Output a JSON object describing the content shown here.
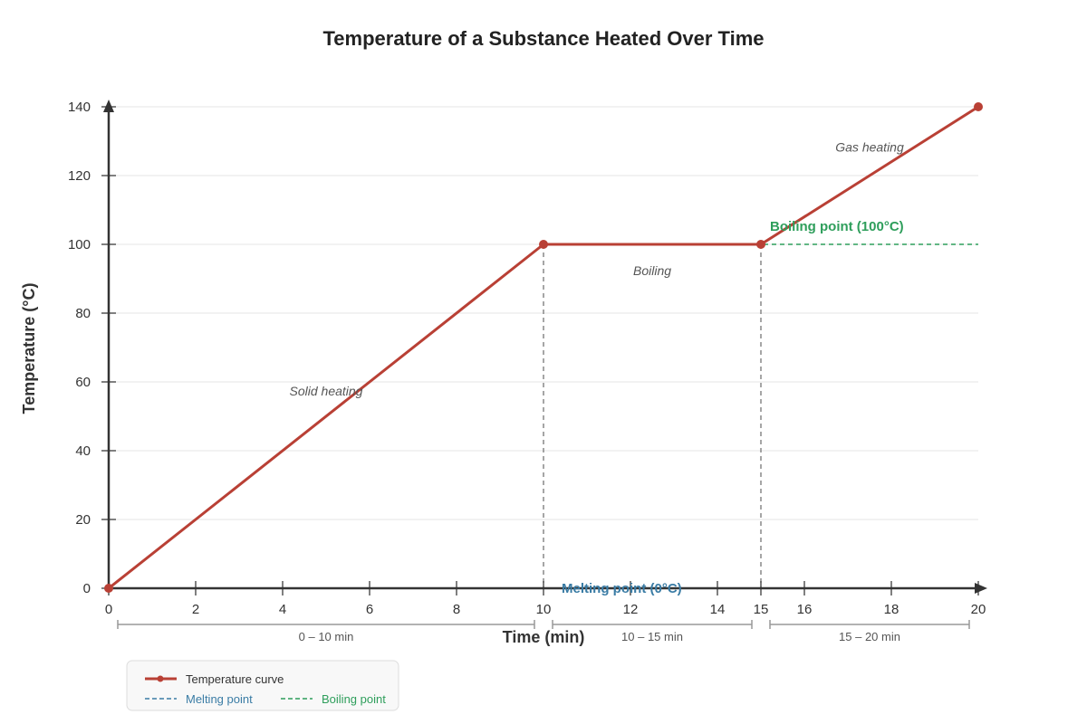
{
  "chart_data": {
    "type": "line",
    "title": "Temperature of a Substance Heated Over Time",
    "xlabel": "Time (min)",
    "ylabel": "Temperature (°C)",
    "xlim": [
      0,
      20
    ],
    "ylim": [
      0,
      140
    ],
    "x_ticks": [
      0,
      2,
      4,
      6,
      8,
      10,
      12,
      14,
      15,
      16,
      18,
      20
    ],
    "y_ticks": [
      0,
      20,
      40,
      60,
      80,
      100,
      120,
      140
    ],
    "grid": true,
    "series": [
      {
        "name": "Temperature curve",
        "color": "#b94035",
        "points": [
          {
            "x": 0,
            "y": 0
          },
          {
            "x": 10,
            "y": 100
          },
          {
            "x": 15,
            "y": 100
          },
          {
            "x": 20,
            "y": 140
          }
        ]
      }
    ],
    "reference_lines": [
      {
        "label": "Melting point (0°C)",
        "legend": "Melting point",
        "value": 0,
        "color": "#3a7ca5"
      },
      {
        "label": "Boiling point (100°C)",
        "legend": "Boiling point",
        "value": 100,
        "color": "#2e9e5b"
      }
    ],
    "vertical_markers": [
      10,
      15
    ],
    "phase_annotations": [
      {
        "text": "Solid heating",
        "x": 5,
        "y": 56
      },
      {
        "text": "Boiling",
        "x": 12.5,
        "y": 91
      },
      {
        "text": "Gas heating",
        "x": 17.5,
        "y": 127
      }
    ],
    "time_ranges": [
      {
        "label": "0 – 10 min",
        "start": 0,
        "end": 10
      },
      {
        "label": "10 – 15 min",
        "start": 10,
        "end": 15
      },
      {
        "label": "15 – 20 min",
        "start": 15,
        "end": 20
      }
    ],
    "legend_position": "bottom-left"
  }
}
